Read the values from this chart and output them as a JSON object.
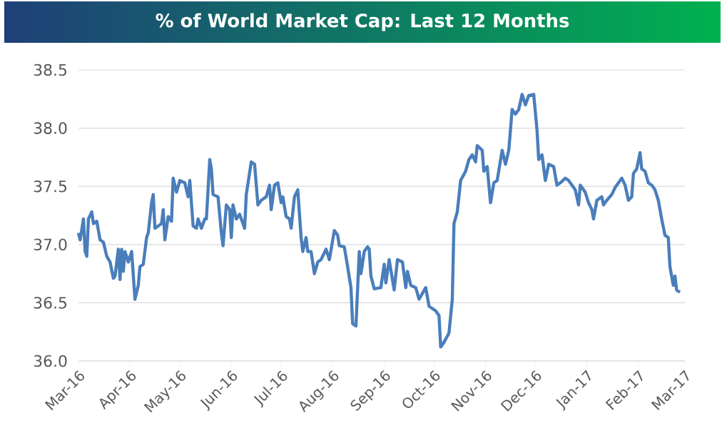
{
  "chart_data": {
    "type": "line",
    "title": "% of World Market Cap: Last 12 Months",
    "x": [
      "2016-03-01",
      "2016-03-02",
      "2016-03-04",
      "2016-03-05",
      "2016-03-06",
      "2016-03-07",
      "2016-03-09",
      "2016-03-10",
      "2016-03-12",
      "2016-03-14",
      "2016-03-16",
      "2016-03-18",
      "2016-03-20",
      "2016-03-22",
      "2016-03-23",
      "2016-03-25",
      "2016-03-26",
      "2016-03-27",
      "2016-03-28",
      "2016-03-29",
      "2016-03-31",
      "2016-04-02",
      "2016-04-04",
      "2016-04-06",
      "2016-04-07",
      "2016-04-09",
      "2016-04-11",
      "2016-04-12",
      "2016-04-14",
      "2016-04-15",
      "2016-04-16",
      "2016-04-18",
      "2016-04-20",
      "2016-04-21",
      "2016-04-22",
      "2016-04-24",
      "2016-04-26",
      "2016-04-27",
      "2016-04-29",
      "2016-05-01",
      "2016-05-04",
      "2016-05-06",
      "2016-05-07",
      "2016-05-09",
      "2016-05-11",
      "2016-05-12",
      "2016-05-14",
      "2016-05-16",
      "2016-05-17",
      "2016-05-19",
      "2016-05-20",
      "2016-05-21",
      "2016-05-24",
      "2016-05-26",
      "2016-05-27",
      "2016-05-29",
      "2016-05-31",
      "2016-06-01",
      "2016-06-02",
      "2016-06-04",
      "2016-06-06",
      "2016-06-09",
      "2016-06-10",
      "2016-06-13",
      "2016-06-15",
      "2016-06-17",
      "2016-06-19",
      "2016-06-22",
      "2016-06-24",
      "2016-06-25",
      "2016-06-27",
      "2016-06-29",
      "2016-07-01",
      "2016-07-02",
      "2016-07-04",
      "2016-07-06",
      "2016-07-07",
      "2016-07-09",
      "2016-07-11",
      "2016-07-13",
      "2016-07-14",
      "2016-07-16",
      "2016-07-17",
      "2016-07-19",
      "2016-07-21",
      "2016-07-23",
      "2016-07-25",
      "2016-07-28",
      "2016-07-30",
      "2016-08-02",
      "2016-08-04",
      "2016-08-05",
      "2016-08-08",
      "2016-08-10",
      "2016-08-12",
      "2016-08-13",
      "2016-08-15",
      "2016-08-17",
      "2016-08-18",
      "2016-08-20",
      "2016-08-22",
      "2016-08-23",
      "2016-08-24",
      "2016-08-26",
      "2016-08-30",
      "2016-09-01",
      "2016-09-02",
      "2016-09-04",
      "2016-09-07",
      "2016-09-09",
      "2016-09-12",
      "2016-09-14",
      "2016-09-15",
      "2016-09-17",
      "2016-09-20",
      "2016-09-22",
      "2016-09-26",
      "2016-09-28",
      "2016-10-02",
      "2016-10-04",
      "2016-10-05",
      "2016-10-07",
      "2016-10-10",
      "2016-10-12",
      "2016-10-13",
      "2016-10-15",
      "2016-10-17",
      "2016-10-20",
      "2016-10-22",
      "2016-10-24",
      "2016-10-26",
      "2016-10-27",
      "2016-10-30",
      "2016-10-31",
      "2016-11-02",
      "2016-11-04",
      "2016-11-06",
      "2016-11-08",
      "2016-11-11",
      "2016-11-13",
      "2016-11-15",
      "2016-11-17",
      "2016-11-19",
      "2016-11-21",
      "2016-11-23",
      "2016-11-25",
      "2016-11-27",
      "2016-11-30",
      "2016-12-02",
      "2016-12-03",
      "2016-12-05",
      "2016-12-07",
      "2016-12-09",
      "2016-12-12",
      "2016-12-14",
      "2016-12-16",
      "2016-12-19",
      "2016-12-21",
      "2016-12-23",
      "2016-12-25",
      "2016-12-27",
      "2016-12-28",
      "2016-12-31",
      "2017-01-02",
      "2017-01-04",
      "2017-01-05",
      "2017-01-07",
      "2017-01-10",
      "2017-01-11",
      "2017-01-13",
      "2017-01-16",
      "2017-01-18",
      "2017-01-20",
      "2017-01-22",
      "2017-01-24",
      "2017-01-26",
      "2017-01-28",
      "2017-01-29",
      "2017-01-31",
      "2017-02-02",
      "2017-02-03",
      "2017-02-05",
      "2017-02-07",
      "2017-02-09",
      "2017-02-11",
      "2017-02-13",
      "2017-02-15",
      "2017-02-17",
      "2017-02-19",
      "2017-02-20",
      "2017-02-22",
      "2017-02-23",
      "2017-02-24",
      "2017-02-26"
    ],
    "series": [
      {
        "color": "#4a7ebb",
        "values": [
          37.1,
          37.04,
          37.22,
          36.94,
          36.9,
          37.22,
          37.28,
          37.18,
          37.2,
          37.04,
          37.02,
          36.9,
          36.85,
          36.71,
          36.73,
          36.96,
          36.7,
          36.96,
          36.77,
          36.94,
          36.85,
          36.94,
          36.53,
          36.65,
          36.81,
          36.83,
          37.06,
          37.1,
          37.36,
          37.43,
          37.14,
          37.16,
          37.18,
          37.3,
          37.04,
          37.24,
          37.2,
          37.57,
          37.45,
          37.55,
          37.53,
          37.41,
          37.55,
          37.16,
          37.14,
          37.22,
          37.14,
          37.22,
          37.22,
          37.73,
          37.65,
          37.43,
          37.41,
          37.1,
          36.99,
          37.34,
          37.3,
          37.06,
          37.34,
          37.22,
          37.26,
          37.14,
          37.43,
          37.71,
          37.69,
          37.34,
          37.38,
          37.41,
          37.51,
          37.3,
          37.51,
          37.53,
          37.36,
          37.41,
          37.24,
          37.22,
          37.14,
          37.41,
          37.47,
          37.06,
          36.94,
          37.06,
          36.94,
          36.94,
          36.75,
          36.85,
          36.87,
          36.96,
          36.87,
          37.12,
          37.08,
          36.99,
          36.98,
          36.81,
          36.63,
          36.32,
          36.3,
          36.94,
          36.75,
          36.94,
          36.98,
          36.96,
          36.73,
          36.62,
          36.63,
          36.83,
          36.67,
          36.87,
          36.61,
          36.87,
          36.85,
          36.63,
          36.77,
          36.65,
          36.63,
          36.53,
          36.63,
          36.47,
          36.43,
          36.39,
          36.12,
          36.16,
          36.24,
          36.53,
          37.18,
          37.28,
          37.55,
          37.63,
          37.73,
          37.77,
          37.71,
          37.85,
          37.81,
          37.63,
          37.67,
          37.36,
          37.53,
          37.55,
          37.81,
          37.69,
          37.81,
          38.16,
          38.12,
          38.16,
          38.29,
          38.2,
          38.28,
          38.29,
          37.98,
          37.73,
          37.77,
          37.55,
          37.69,
          37.67,
          37.51,
          37.53,
          37.57,
          37.55,
          37.51,
          37.47,
          37.34,
          37.51,
          37.45,
          37.36,
          37.3,
          37.22,
          37.38,
          37.41,
          37.34,
          37.38,
          37.43,
          37.49,
          37.53,
          37.57,
          37.51,
          37.38,
          37.41,
          37.61,
          37.65,
          37.79,
          37.65,
          37.63,
          37.53,
          37.51,
          37.47,
          37.38,
          37.22,
          37.08,
          37.06,
          36.81,
          36.65,
          36.73,
          36.61,
          36.59
        ]
      }
    ],
    "xlim": [
      "2016-03-01",
      "2017-03-01"
    ],
    "xticks": [
      {
        "value": "2016-03-01",
        "label": "Mar-16"
      },
      {
        "value": "2016-04-01",
        "label": "Apr-16"
      },
      {
        "value": "2016-05-01",
        "label": "May-16"
      },
      {
        "value": "2016-06-01",
        "label": "Jun-16"
      },
      {
        "value": "2016-07-01",
        "label": "Jul-16"
      },
      {
        "value": "2016-08-01",
        "label": "Aug-16"
      },
      {
        "value": "2016-09-01",
        "label": "Sep-16"
      },
      {
        "value": "2016-10-01",
        "label": "Oct-16"
      },
      {
        "value": "2016-11-01",
        "label": "Nov-16"
      },
      {
        "value": "2016-12-01",
        "label": "Dec-16"
      },
      {
        "value": "2017-01-01",
        "label": "Jan-17"
      },
      {
        "value": "2017-02-01",
        "label": "Feb-17"
      },
      {
        "value": "2017-03-01",
        "label": "Mar-17"
      }
    ],
    "ylim": [
      36.0,
      38.5
    ],
    "yticks": [
      {
        "value": 36.0,
        "label": "36.0"
      },
      {
        "value": 36.5,
        "label": "36.5"
      },
      {
        "value": 37.0,
        "label": "37.0"
      },
      {
        "value": 37.5,
        "label": "37.5"
      },
      {
        "value": 38.0,
        "label": "38.0"
      },
      {
        "value": 38.5,
        "label": "38.5"
      }
    ],
    "grid": "y",
    "marker": "none",
    "line_style": "solid"
  }
}
